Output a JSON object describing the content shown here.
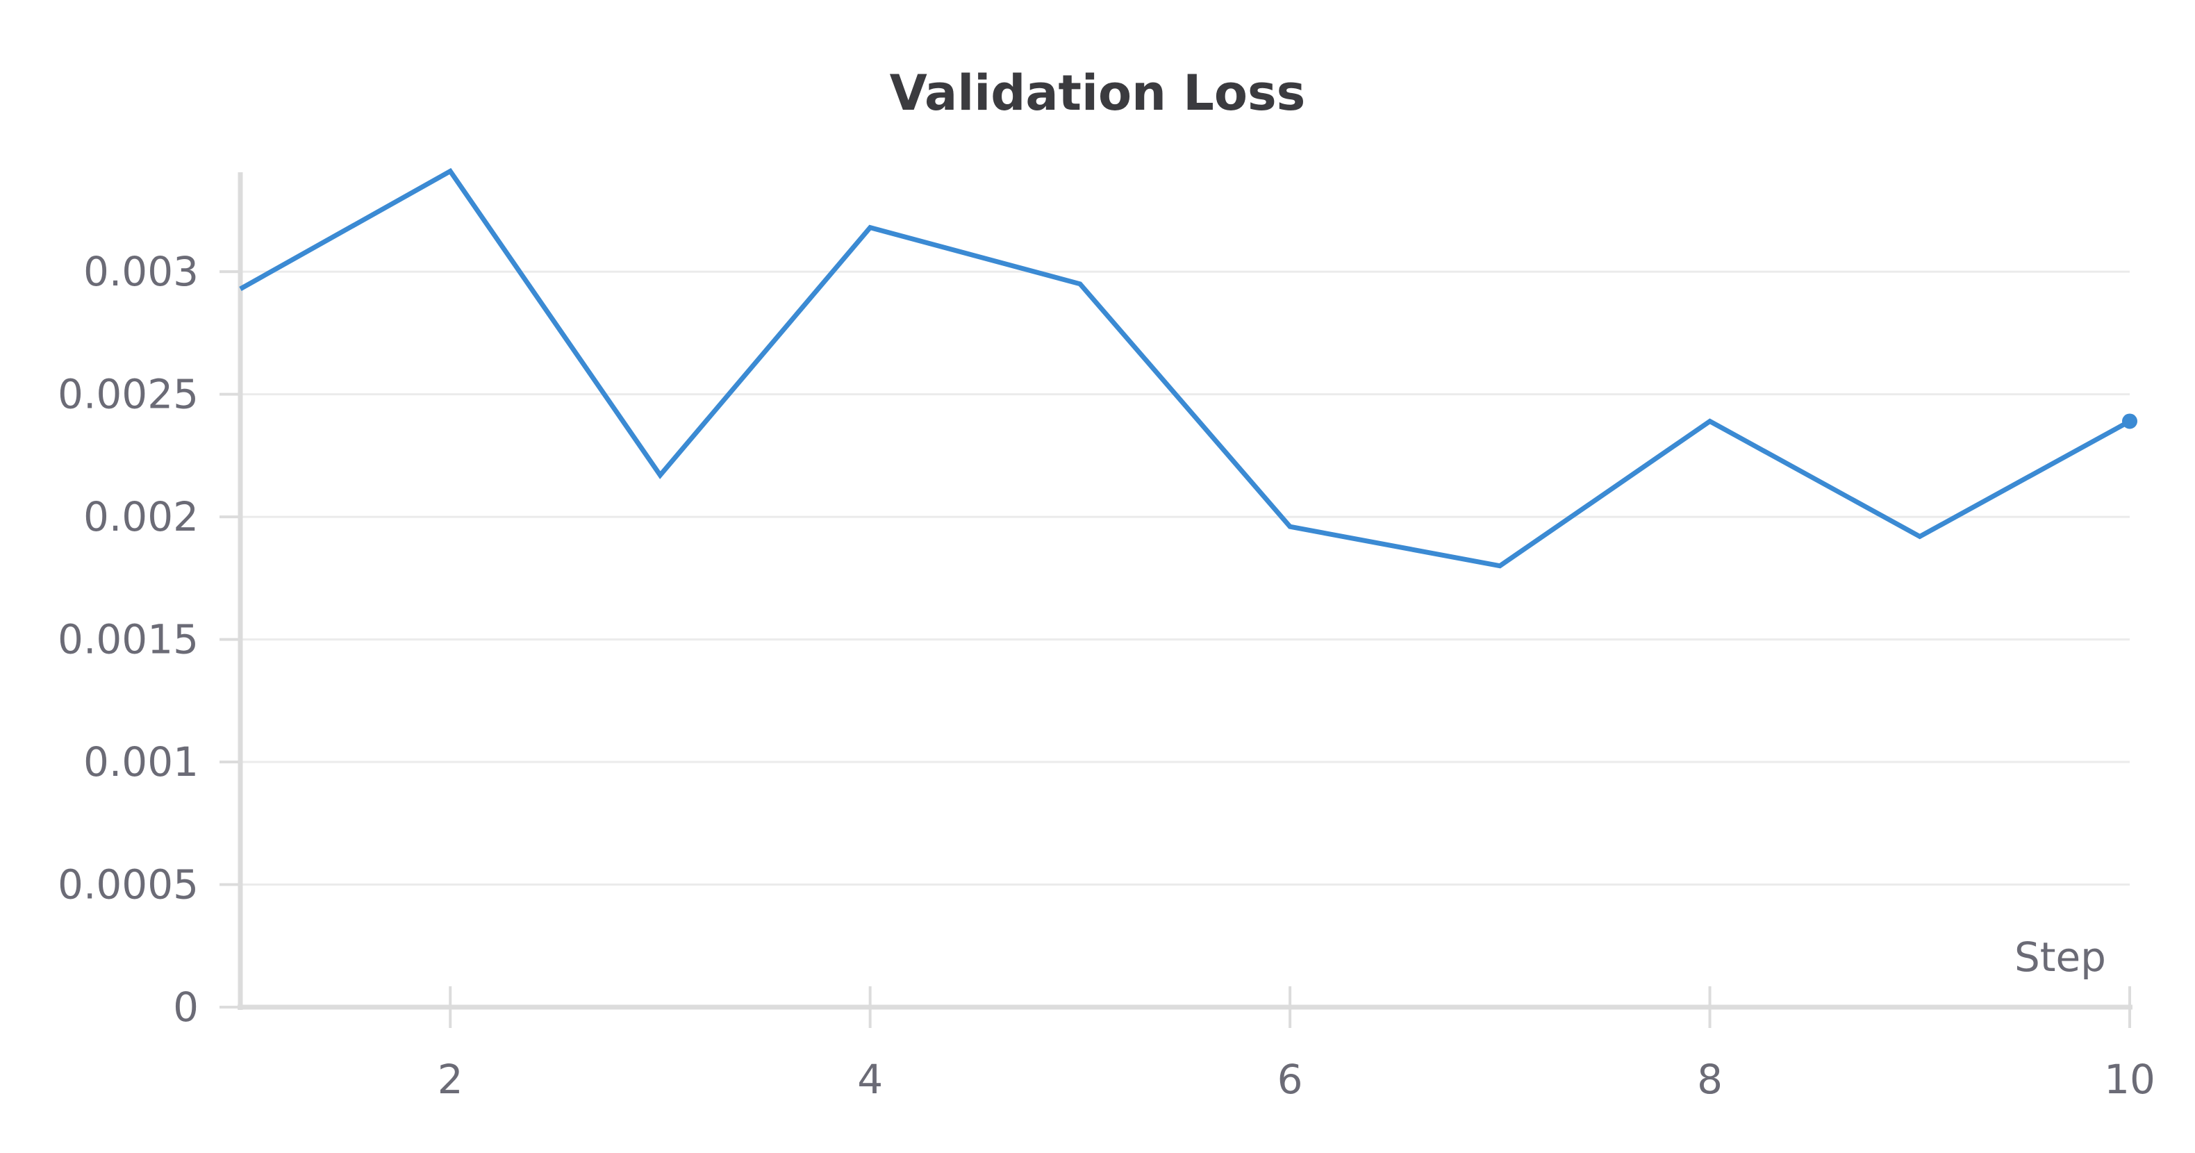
{
  "chart_data": {
    "type": "line",
    "title": "Validation Loss",
    "xlabel": "Step",
    "ylabel": "",
    "xlim": [
      1,
      10
    ],
    "ylim": [
      0,
      0.0034
    ],
    "x_ticks": [
      2,
      4,
      6,
      8,
      10
    ],
    "y_ticks": [
      {
        "value": 0,
        "label": "0"
      },
      {
        "value": 0.0005,
        "label": "0.0005"
      },
      {
        "value": 0.001,
        "label": "0.001"
      },
      {
        "value": 0.0015,
        "label": "0.0015"
      },
      {
        "value": 0.002,
        "label": "0.002"
      },
      {
        "value": 0.0025,
        "label": "0.0025"
      },
      {
        "value": 0.003,
        "label": "0.003"
      }
    ],
    "grid": true,
    "series": [
      {
        "color": "#3b8ad3",
        "x": [
          1,
          2,
          3,
          4,
          5,
          6,
          7,
          8,
          9,
          10
        ],
        "values": [
          0.00293,
          0.00341,
          0.00217,
          0.00318,
          0.00295,
          0.00196,
          0.0018,
          0.00239,
          0.00192,
          0.00239
        ]
      }
    ]
  }
}
